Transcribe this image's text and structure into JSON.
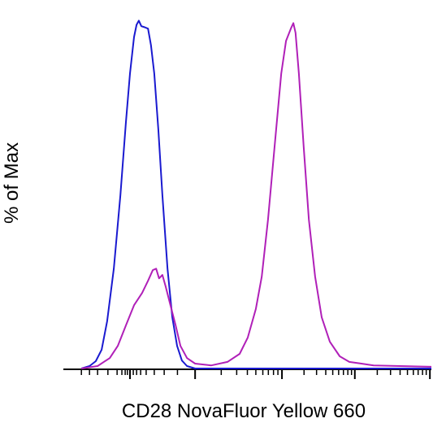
{
  "chart_data": {
    "type": "line",
    "x_label": "CD28 NovaFluor Yellow 660",
    "y_label": "% of Max",
    "xlim": [
      0,
      100
    ],
    "ylim": [
      0,
      105
    ],
    "xticks": [
      18.1,
      35.8,
      59.4,
      79.2,
      99.6
    ],
    "xminorticks": [
      4.9,
      7.1,
      9.3,
      12.1,
      14.6,
      15.9,
      16.8,
      17.4,
      19.0,
      19.9,
      21.0,
      22.5,
      24.7,
      27.4,
      31.0,
      42.9,
      47.1,
      50.0,
      52.3,
      54.2,
      55.7,
      57.1,
      58.3,
      65.4,
      68.8,
      71.3,
      73.2,
      74.8,
      76.1,
      77.3,
      78.3,
      85.3,
      88.9,
      91.5,
      93.5,
      95.1,
      96.4,
      97.6,
      98.6
    ],
    "series": [
      {
        "color": "#1a1ad0",
        "x": [
          4.9,
          7.1,
          8.8,
          10.4,
          11.9,
          13.7,
          15.5,
          17.0,
          18.1,
          19.2,
          19.9,
          20.5,
          21.2,
          22.1,
          23.0,
          23.8,
          24.7,
          25.8,
          26.9,
          28.3,
          29.6,
          30.9,
          32.2,
          33.6,
          35.8,
          100
        ],
        "values": [
          0,
          0.7,
          2.1,
          5.4,
          13.6,
          28.7,
          49.8,
          70.8,
          84.8,
          95.3,
          98.8,
          100,
          98.4,
          98.1,
          97.7,
          93.0,
          84.8,
          68.7,
          49.8,
          28.7,
          14.7,
          6.5,
          2.3,
          0.7,
          0,
          0
        ]
      },
      {
        "color": "#b020b8",
        "x": [
          4.9,
          9.3,
          12.6,
          14.8,
          17.0,
          19.2,
          21.4,
          23.0,
          24.3,
          25.2,
          26.0,
          26.9,
          27.8,
          29.1,
          30.5,
          31.8,
          33.6,
          35.8,
          40.2,
          44.6,
          47.9,
          50.1,
          52.3,
          53.9,
          55.6,
          57.4,
          59.2,
          60.5,
          61.8,
          62.5,
          63.1,
          64.0,
          65.3,
          66.7,
          68.4,
          70.2,
          72.4,
          75.1,
          77.7,
          81.0,
          84.3,
          100
        ],
        "values": [
          0,
          0.7,
          3.0,
          6.5,
          12.4,
          18.2,
          21.7,
          25.2,
          28.3,
          28.7,
          25.9,
          26.9,
          23.6,
          18.2,
          12.4,
          6.5,
          3.0,
          1.4,
          0.9,
          1.9,
          4.2,
          8.9,
          17.1,
          26.4,
          42.8,
          63.8,
          84.8,
          94.2,
          97.7,
          99.3,
          96.5,
          84.8,
          63.8,
          42.8,
          26.4,
          14.7,
          7.7,
          3.5,
          1.9,
          1.4,
          0.9,
          0.5
        ]
      }
    ]
  }
}
